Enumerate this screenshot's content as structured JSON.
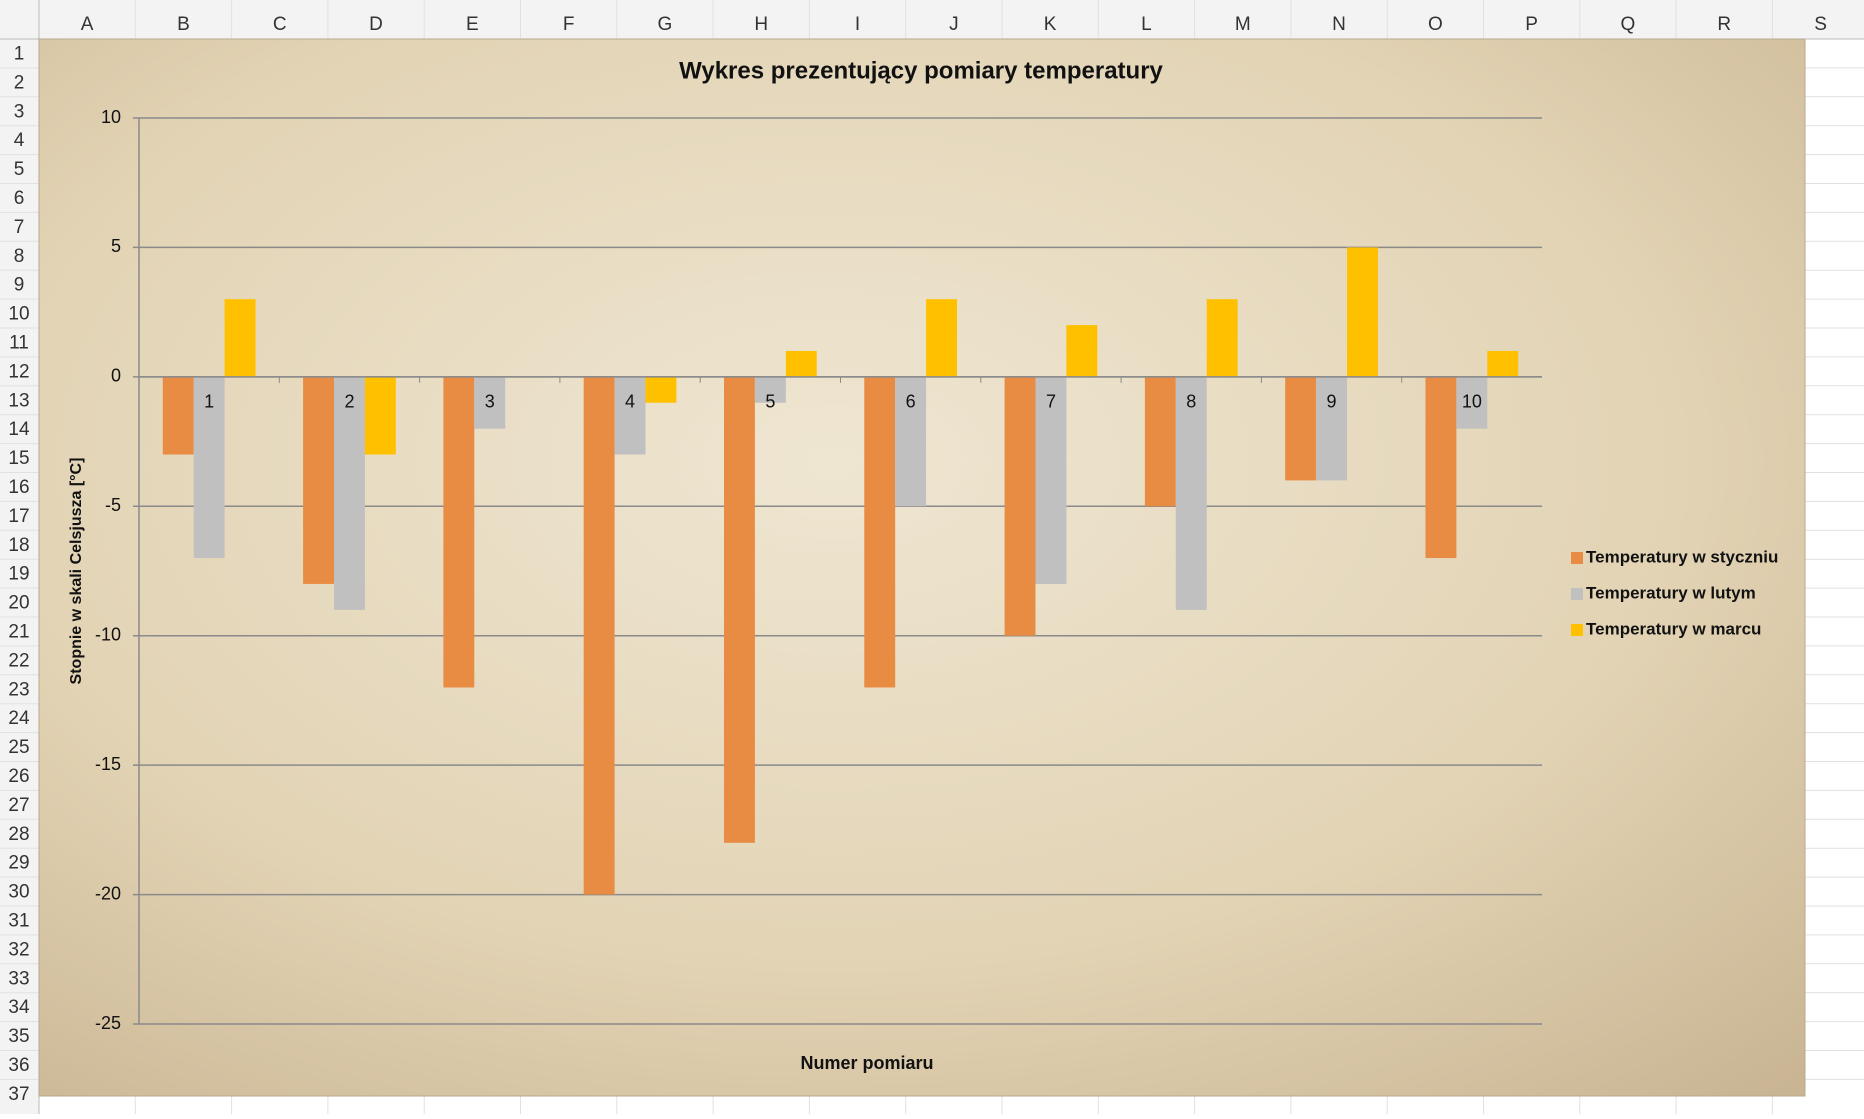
{
  "spreadsheet": {
    "columns": [
      "A",
      "B",
      "C",
      "D",
      "E",
      "F",
      "G",
      "H",
      "I",
      "J",
      "K",
      "L",
      "M",
      "N",
      "O",
      "P",
      "Q",
      "R",
      "S"
    ],
    "rows": [
      1,
      2,
      3,
      4,
      5,
      6,
      7,
      8,
      9,
      10,
      11,
      12,
      13,
      14,
      15,
      16,
      17,
      18,
      19,
      20,
      21,
      22,
      23,
      24,
      25,
      26,
      27,
      28,
      29,
      30,
      31,
      32,
      33,
      34,
      35,
      36,
      37
    ]
  },
  "chart_data": {
    "type": "bar",
    "title": "Wykres prezentujący pomiary temperatury",
    "x_label": "Numer pomiaru",
    "y_label": "Stopnie w skali Celsjusza [°C]",
    "categories": [
      "1",
      "2",
      "3",
      "4",
      "5",
      "6",
      "7",
      "8",
      "9",
      "10"
    ],
    "series": [
      {
        "name": "Temperatury w styczniu",
        "color": "#e98c43",
        "values": [
          -3,
          -8,
          -12,
          -20,
          -18,
          -12,
          -10,
          -5,
          -4,
          -7
        ]
      },
      {
        "name": "Temperatury w lutym",
        "color": "#c0c0c0",
        "values": [
          -7,
          -9,
          -2,
          -3,
          -1,
          -5,
          -8,
          -9,
          -4,
          -2
        ]
      },
      {
        "name": "Temperatury w marcu",
        "color": "#ffc000",
        "values": [
          3,
          -3,
          0,
          -1,
          1,
          3,
          2,
          3,
          5,
          1
        ]
      }
    ],
    "ylim": [
      -25,
      10
    ],
    "yticks": [
      10,
      5,
      0,
      -5,
      -10,
      -15,
      -20,
      -25
    ],
    "grid": true,
    "legend": "right"
  }
}
